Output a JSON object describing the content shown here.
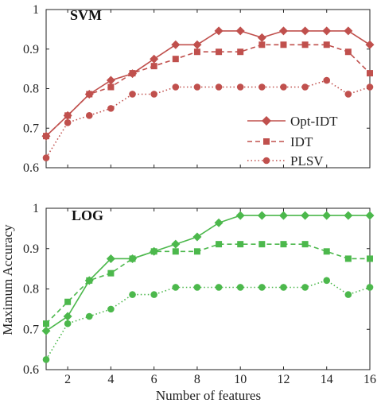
{
  "chart_data": [
    {
      "type": "line",
      "title": "SVM",
      "x": [
        1,
        2,
        3,
        4,
        5,
        6,
        7,
        8,
        9,
        10,
        11,
        12,
        13,
        14,
        15,
        16
      ],
      "xlim": [
        1,
        16
      ],
      "ylim": [
        0.6,
        1.0
      ],
      "xticks": [
        "2",
        "4",
        "6",
        "8",
        "10",
        "12",
        "14",
        "16"
      ],
      "yticks": [
        "0.6",
        "0.7",
        "0.8",
        "0.9",
        "1"
      ],
      "color": "#c0504d",
      "legend_position": "center-right",
      "series": [
        {
          "name": "Opt-IDT",
          "marker": "diamond",
          "dash": "solid",
          "values": [
            0.68,
            0.732,
            0.786,
            0.821,
            0.838,
            0.875,
            0.911,
            0.911,
            0.946,
            0.946,
            0.929,
            0.946,
            0.946,
            0.946,
            0.946,
            0.911
          ]
        },
        {
          "name": "IDT",
          "marker": "square",
          "dash": "dashed",
          "values": [
            0.68,
            0.732,
            0.786,
            0.804,
            0.839,
            0.857,
            0.875,
            0.893,
            0.893,
            0.893,
            0.911,
            0.911,
            0.911,
            0.911,
            0.893,
            0.839
          ]
        },
        {
          "name": "PLSV",
          "marker": "circle",
          "dash": "dotted",
          "values": [
            0.625,
            0.714,
            0.732,
            0.75,
            0.786,
            0.786,
            0.804,
            0.804,
            0.804,
            0.804,
            0.804,
            0.804,
            0.804,
            0.821,
            0.786,
            0.804
          ]
        }
      ]
    },
    {
      "type": "line",
      "title": "LOG",
      "x": [
        1,
        2,
        3,
        4,
        5,
        6,
        7,
        8,
        9,
        10,
        11,
        12,
        13,
        14,
        15,
        16
      ],
      "xlim": [
        1,
        16
      ],
      "ylim": [
        0.6,
        1.0
      ],
      "xticks": [
        "2",
        "4",
        "6",
        "8",
        "10",
        "12",
        "14",
        "16"
      ],
      "yticks": [
        "0.6",
        "0.7",
        "0.8",
        "0.9",
        "1"
      ],
      "xlabel": "Number of features",
      "color": "#4cb84c",
      "series": [
        {
          "name": "Opt-IDT",
          "marker": "diamond",
          "dash": "solid",
          "values": [
            0.696,
            0.732,
            0.821,
            0.875,
            0.875,
            0.893,
            0.911,
            0.929,
            0.964,
            0.982,
            0.982,
            0.982,
            0.982,
            0.982,
            0.982,
            0.982
          ]
        },
        {
          "name": "IDT",
          "marker": "square",
          "dash": "dashed",
          "values": [
            0.714,
            0.768,
            0.821,
            0.839,
            0.875,
            0.893,
            0.893,
            0.893,
            0.911,
            0.911,
            0.911,
            0.911,
            0.911,
            0.893,
            0.875,
            0.875
          ]
        },
        {
          "name": "PLSV",
          "marker": "circle",
          "dash": "dotted",
          "values": [
            0.625,
            0.714,
            0.732,
            0.75,
            0.786,
            0.786,
            0.804,
            0.804,
            0.804,
            0.804,
            0.804,
            0.804,
            0.804,
            0.821,
            0.786,
            0.804
          ]
        }
      ]
    }
  ],
  "shared_ylabel": "Maximum Accuracy"
}
